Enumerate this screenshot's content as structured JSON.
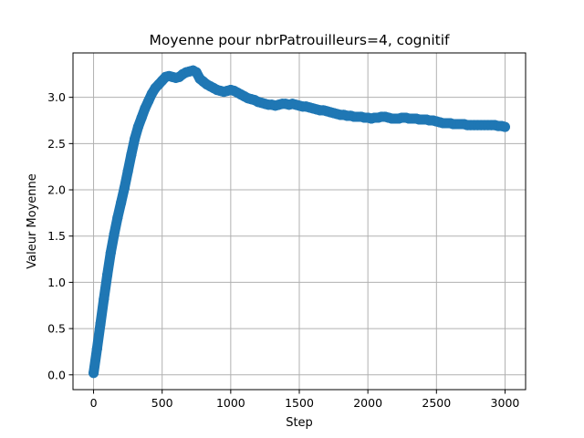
{
  "chart_data": {
    "type": "scatter",
    "title": "Moyenne pour nbrPatrouilleurs=4, cognitif",
    "xlabel": "Step",
    "ylabel": "Valeur Moyenne",
    "xlim": [
      -150,
      3150
    ],
    "ylim": [
      -0.16,
      3.48
    ],
    "xticks": [
      0,
      500,
      1000,
      1500,
      2000,
      2500,
      3000
    ],
    "xtick_labels": [
      "0",
      "500",
      "1000",
      "1500",
      "2000",
      "2500",
      "3000"
    ],
    "yticks": [
      0.0,
      0.5,
      1.0,
      1.5,
      2.0,
      2.5,
      3.0
    ],
    "ytick_labels": [
      "0.0",
      "0.5",
      "1.0",
      "1.5",
      "2.0",
      "2.5",
      "3.0"
    ],
    "grid": true,
    "marker_color": "#1f77b4",
    "series": [
      {
        "x": [
          0,
          25,
          50,
          75,
          100,
          125,
          150,
          175,
          200,
          225,
          250,
          275,
          300,
          325,
          350,
          375,
          400,
          425,
          450,
          475,
          500,
          525,
          550,
          575,
          600,
          625,
          650,
          675,
          700,
          725,
          750,
          775,
          800,
          825,
          850,
          875,
          900,
          925,
          950,
          975,
          1000,
          1025,
          1050,
          1075,
          1100,
          1125,
          1150,
          1175,
          1200,
          1225,
          1250,
          1275,
          1300,
          1325,
          1350,
          1375,
          1400,
          1425,
          1450,
          1475,
          1500,
          1525,
          1550,
          1575,
          1600,
          1625,
          1650,
          1675,
          1700,
          1725,
          1750,
          1775,
          1800,
          1825,
          1850,
          1875,
          1900,
          1925,
          1950,
          1975,
          2000,
          2025,
          2050,
          2075,
          2100,
          2125,
          2150,
          2175,
          2200,
          2225,
          2250,
          2275,
          2300,
          2325,
          2350,
          2375,
          2400,
          2425,
          2450,
          2475,
          2500,
          2525,
          2550,
          2575,
          2600,
          2625,
          2650,
          2675,
          2700,
          2725,
          2750,
          2775,
          2800,
          2825,
          2850,
          2875,
          2900,
          2925,
          2950,
          2975,
          3000
        ],
        "y": [
          0.02,
          0.28,
          0.55,
          0.82,
          1.08,
          1.32,
          1.52,
          1.7,
          1.86,
          2.02,
          2.2,
          2.38,
          2.55,
          2.68,
          2.78,
          2.88,
          2.96,
          3.04,
          3.1,
          3.14,
          3.18,
          3.22,
          3.23,
          3.22,
          3.21,
          3.22,
          3.25,
          3.27,
          3.28,
          3.29,
          3.27,
          3.2,
          3.17,
          3.14,
          3.12,
          3.1,
          3.08,
          3.07,
          3.06,
          3.07,
          3.08,
          3.07,
          3.05,
          3.03,
          3.01,
          2.99,
          2.98,
          2.97,
          2.95,
          2.94,
          2.93,
          2.92,
          2.92,
          2.91,
          2.92,
          2.93,
          2.93,
          2.92,
          2.93,
          2.92,
          2.91,
          2.9,
          2.9,
          2.89,
          2.88,
          2.87,
          2.86,
          2.86,
          2.85,
          2.84,
          2.83,
          2.82,
          2.81,
          2.81,
          2.8,
          2.8,
          2.79,
          2.79,
          2.79,
          2.78,
          2.78,
          2.77,
          2.78,
          2.78,
          2.79,
          2.79,
          2.78,
          2.77,
          2.77,
          2.77,
          2.78,
          2.78,
          2.77,
          2.77,
          2.77,
          2.76,
          2.76,
          2.76,
          2.75,
          2.75,
          2.74,
          2.73,
          2.72,
          2.72,
          2.72,
          2.71,
          2.71,
          2.71,
          2.71,
          2.7,
          2.7,
          2.7,
          2.7,
          2.7,
          2.7,
          2.7,
          2.7,
          2.7,
          2.69,
          2.69,
          2.68
        ]
      }
    ]
  }
}
